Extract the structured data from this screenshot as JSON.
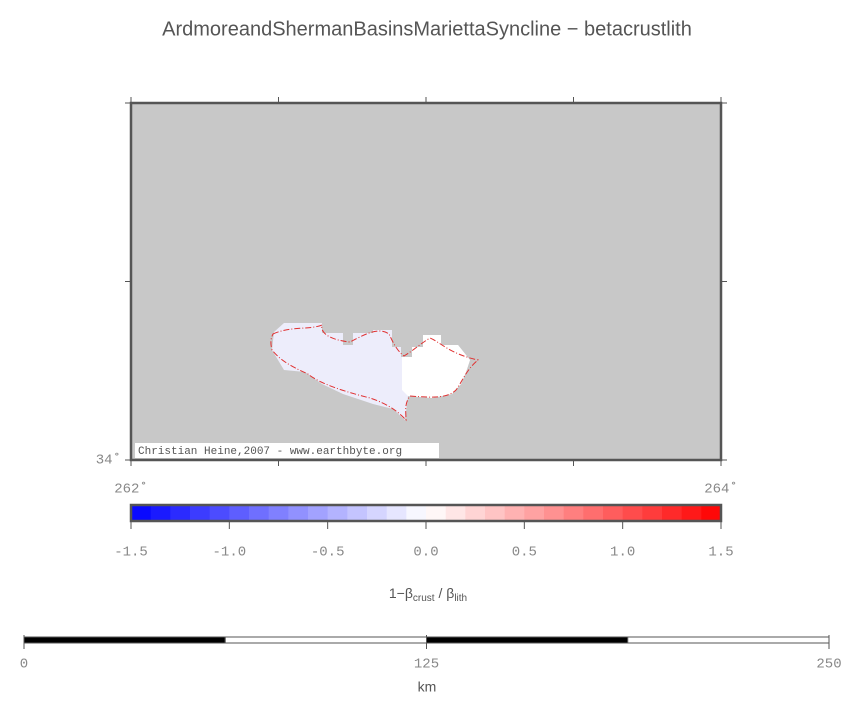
{
  "map": {
    "title": "ArdmoreandShermanBasinsMariettaSyncline − betacrustlith",
    "xlim": [
      262,
      264
    ],
    "ylim": [
      34,
      35
    ],
    "xticks": [
      {
        "value": 262,
        "label": "262˚"
      },
      {
        "value": 262.5,
        "label": null
      },
      {
        "value": 263,
        "label": null
      },
      {
        "value": 263.5,
        "label": null
      },
      {
        "value": 264,
        "label": "264˚"
      }
    ],
    "yticks": [
      {
        "value": 34,
        "label": "34˚"
      },
      {
        "value": 34.5,
        "label": null
      },
      {
        "value": 35,
        "label": null
      }
    ],
    "background": "#c8c8c8",
    "credit": "Christian Heine,2007 - www.earthbyte.org"
  },
  "colorbar": {
    "lim": [
      -1.5,
      1.5
    ],
    "step": 0.1,
    "colors": [
      "#0000ff",
      "#ffffff",
      "#ff0000"
    ],
    "ticks": [
      -1.5,
      {
        "value": -1,
        "label": "-1.0"
      },
      -0.5,
      {
        "value": 0,
        "label": "0.0"
      },
      0.5,
      {
        "value": 1,
        "label": "1.0"
      },
      1.5
    ],
    "label": [
      "1−β",
      "crust",
      " / β",
      "lith"
    ]
  },
  "scalebar": {
    "lim": [
      0,
      250
    ],
    "segment": 62.5,
    "ticks": [
      0,
      125,
      250
    ],
    "unit": "km"
  }
}
